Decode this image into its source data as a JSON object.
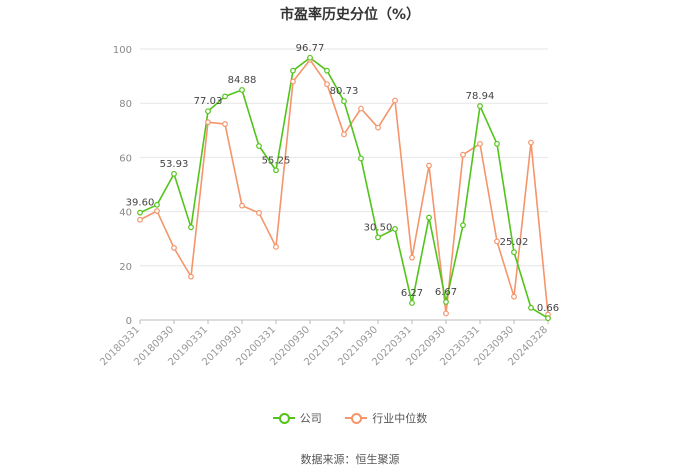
{
  "chart_data": {
    "type": "line",
    "title": "市盈率历史分位（%）",
    "xlabel": "",
    "ylabel": "",
    "ylim": [
      0,
      100
    ],
    "yticks": [
      "0",
      "20",
      "40",
      "60",
      "80",
      "100"
    ],
    "x_tick_labels": [
      "20180331",
      "20180930",
      "20190331",
      "20190930",
      "20200331",
      "20200930",
      "20210331",
      "20210930",
      "20220331",
      "20220930",
      "20230331",
      "20230930",
      "20240328"
    ],
    "series": [
      {
        "name": "公司",
        "color": "#52c41a",
        "values": [
          39.6,
          42.5,
          53.93,
          34.2,
          77.03,
          82.5,
          84.88,
          64.2,
          55.25,
          92.0,
          96.77,
          92.0,
          80.73,
          59.6,
          30.5,
          33.6,
          6.27,
          37.8,
          6.67,
          35.0,
          78.94,
          65.0,
          25.02,
          4.5,
          0.66
        ]
      },
      {
        "name": "行业中位数",
        "color": "#f4956b",
        "values": [
          37.0,
          40.2,
          26.6,
          16.0,
          73.0,
          72.3,
          42.2,
          39.5,
          27.0,
          88.0,
          96.0,
          87.0,
          68.5,
          78.0,
          71.0,
          81.0,
          23.0,
          57.0,
          2.4,
          61.0,
          65.0,
          29.0,
          8.6,
          65.5,
          2.0
        ]
      }
    ],
    "point_labels": [
      {
        "series": 0,
        "index": 0,
        "text": "39.60"
      },
      {
        "series": 0,
        "index": 2,
        "text": "53.93"
      },
      {
        "series": 0,
        "index": 4,
        "text": "77.03"
      },
      {
        "series": 0,
        "index": 6,
        "text": "84.88"
      },
      {
        "series": 0,
        "index": 8,
        "text": "55.25"
      },
      {
        "series": 0,
        "index": 10,
        "text": "96.77"
      },
      {
        "series": 0,
        "index": 12,
        "text": "80.73"
      },
      {
        "series": 0,
        "index": 14,
        "text": "30.50"
      },
      {
        "series": 0,
        "index": 16,
        "text": "6.27"
      },
      {
        "series": 0,
        "index": 18,
        "text": "6.67"
      },
      {
        "series": 0,
        "index": 20,
        "text": "78.94"
      },
      {
        "series": 0,
        "index": 22,
        "text": "25.02"
      },
      {
        "series": 0,
        "index": 24,
        "text": "0.66"
      }
    ],
    "grid": true,
    "legend": "bottom"
  },
  "source": "数据来源：恒生聚源"
}
